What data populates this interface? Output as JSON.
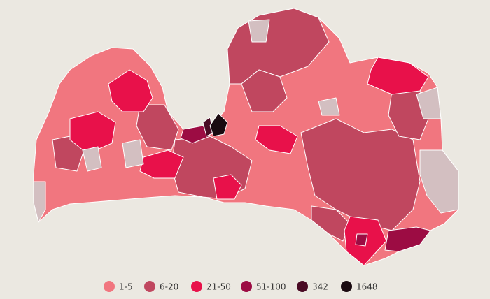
{
  "legend": {
    "items": [
      {
        "label": "1-5",
        "color": "#f1767f"
      },
      {
        "label": "6-20",
        "color": "#c0475f"
      },
      {
        "label": "21-50",
        "color": "#e8114a"
      },
      {
        "label": "51-100",
        "color": "#9c0c43"
      },
      {
        "label": "342",
        "color": "#4a0a24"
      },
      {
        "label": "1648",
        "color": "#1a0a10"
      }
    ]
  }
}
